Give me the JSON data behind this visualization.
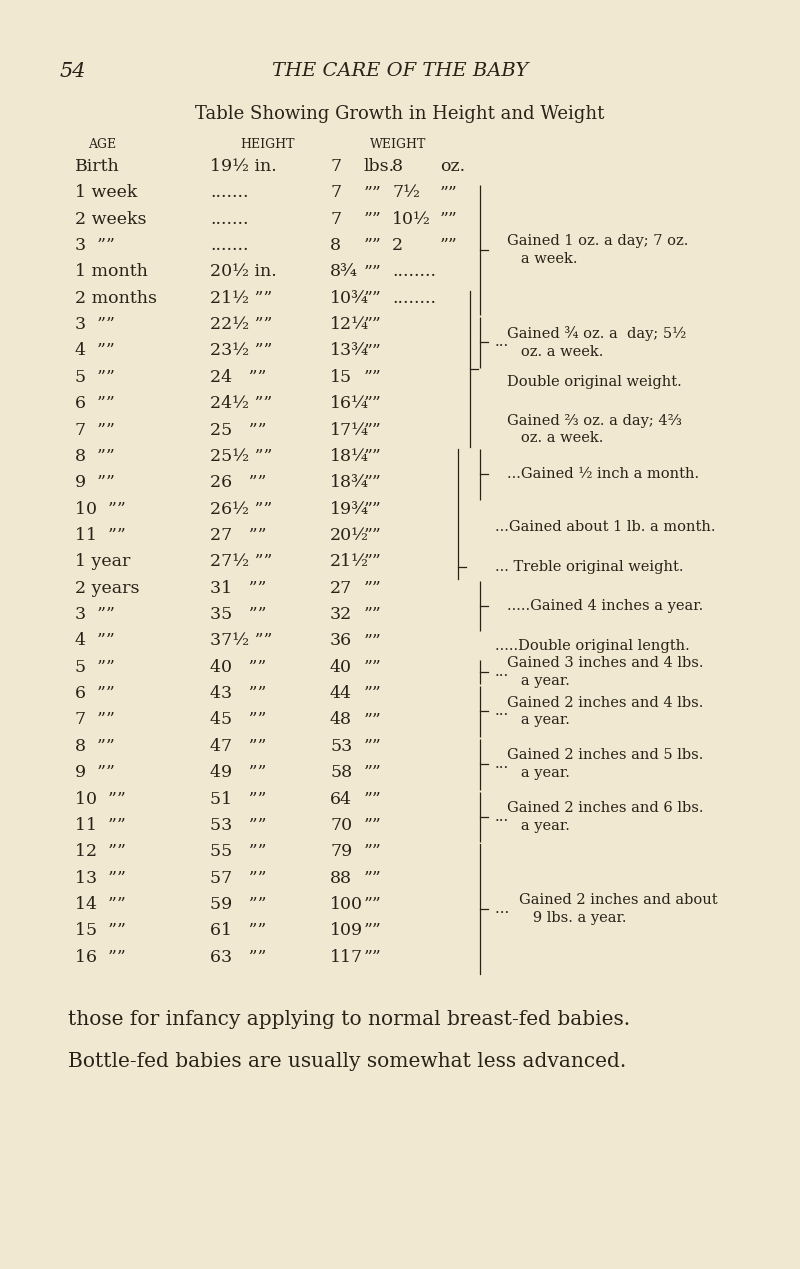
{
  "page_number": "54",
  "header": "THE CARE OF THE BABY",
  "title": "Table Showing Growth in Height and Weight",
  "bg_color": "#f0e8d0",
  "text_color": "#2a2218",
  "rows": [
    {
      "age": "Birth",
      "height": "19½ in.",
      "wt": "7",
      "wt_u": "lbs.",
      "oz": "8",
      "oz_u": "oz."
    },
    {
      "age": "1 week",
      "height": ".......",
      "wt": "7",
      "wt_u": "””",
      "oz": "7½",
      "oz_u": "””"
    },
    {
      "age": "2 weeks",
      "height": ".......",
      "wt": "7",
      "wt_u": "””",
      "oz": "10½",
      "oz_u": "””"
    },
    {
      "age": "3  ””",
      "height": ".......",
      "wt": "8",
      "wt_u": "””",
      "oz": "2",
      "oz_u": "””"
    },
    {
      "age": "1 month",
      "height": "20½ in.",
      "wt": "8¾",
      "wt_u": "””",
      "oz": "........",
      "oz_u": ""
    },
    {
      "age": "2 months",
      "height": "21½ ””",
      "wt": "10¾",
      "wt_u": "””",
      "oz": "........",
      "oz_u": ""
    },
    {
      "age": "3  ””",
      "height": "22½ ””",
      "wt": "12¼",
      "wt_u": "””",
      "oz": "",
      "oz_u": ""
    },
    {
      "age": "4  ””",
      "height": "23½ ””",
      "wt": "13¾",
      "wt_u": "””",
      "oz": "",
      "oz_u": ""
    },
    {
      "age": "5  ””",
      "height": "24   ””",
      "wt": "15",
      "wt_u": "””",
      "oz": "",
      "oz_u": ""
    },
    {
      "age": "6  ””",
      "height": "24½ ””",
      "wt": "16¼",
      "wt_u": "””",
      "oz": "",
      "oz_u": ""
    },
    {
      "age": "7  ””",
      "height": "25   ””",
      "wt": "17¼",
      "wt_u": "””",
      "oz": "",
      "oz_u": ""
    },
    {
      "age": "8  ””",
      "height": "25½ ””",
      "wt": "18¼",
      "wt_u": "””",
      "oz": "",
      "oz_u": ""
    },
    {
      "age": "9  ””",
      "height": "26   ””",
      "wt": "18¾",
      "wt_u": "””",
      "oz": "",
      "oz_u": ""
    },
    {
      "age": "10  ””",
      "height": "26½ ””",
      "wt": "19¾",
      "wt_u": "””",
      "oz": "",
      "oz_u": ""
    },
    {
      "age": "11  ””",
      "height": "27   ””",
      "wt": "20½",
      "wt_u": "””",
      "oz": "",
      "oz_u": ""
    },
    {
      "age": "1 year",
      "height": "27½ ””",
      "wt": "21½",
      "wt_u": "””",
      "oz": "",
      "oz_u": ""
    },
    {
      "age": "2 years",
      "height": "31   ””",
      "wt": "27",
      "wt_u": "””",
      "oz": "",
      "oz_u": ""
    },
    {
      "age": "3  ””",
      "height": "35   ””",
      "wt": "32",
      "wt_u": "””",
      "oz": "",
      "oz_u": ""
    },
    {
      "age": "4  ””",
      "height": "37½ ””",
      "wt": "36",
      "wt_u": "””",
      "oz": "",
      "oz_u": ""
    },
    {
      "age": "5  ””",
      "height": "40   ””",
      "wt": "40",
      "wt_u": "””",
      "oz": "",
      "oz_u": ""
    },
    {
      "age": "6  ””",
      "height": "43   ””",
      "wt": "44",
      "wt_u": "””",
      "oz": "",
      "oz_u": ""
    },
    {
      "age": "7  ””",
      "height": "45   ””",
      "wt": "48",
      "wt_u": "””",
      "oz": "",
      "oz_u": ""
    },
    {
      "age": "8  ””",
      "height": "47   ””",
      "wt": "53",
      "wt_u": "””",
      "oz": "",
      "oz_u": ""
    },
    {
      "age": "9  ””",
      "height": "49   ””",
      "wt": "58",
      "wt_u": "””",
      "oz": "",
      "oz_u": ""
    },
    {
      "age": "10  ””",
      "height": "51   ””",
      "wt": "64",
      "wt_u": "””",
      "oz": "",
      "oz_u": ""
    },
    {
      "age": "11  ””",
      "height": "53   ””",
      "wt": "70",
      "wt_u": "””",
      "oz": "",
      "oz_u": ""
    },
    {
      "age": "12  ””",
      "height": "55   ””",
      "wt": "79",
      "wt_u": "””",
      "oz": "",
      "oz_u": ""
    },
    {
      "age": "13  ””",
      "height": "57   ””",
      "wt": "88",
      "wt_u": "””",
      "oz": "",
      "oz_u": ""
    },
    {
      "age": "14  ””",
      "height": "59   ””",
      "wt": "100",
      "wt_u": "””",
      "oz": "",
      "oz_u": ""
    },
    {
      "age": "15  ””",
      "height": "61   ””",
      "wt": "109",
      "wt_u": "””",
      "oz": "",
      "oz_u": ""
    },
    {
      "age": "16  ””",
      "height": "63   ””",
      "wt": "117",
      "wt_u": "””",
      "oz": "",
      "oz_u": ""
    }
  ],
  "footer": [
    "those for infancy applying to normal breast-fed babies.",
    "Bottle-fed babies are usually somewhat less advanced."
  ]
}
